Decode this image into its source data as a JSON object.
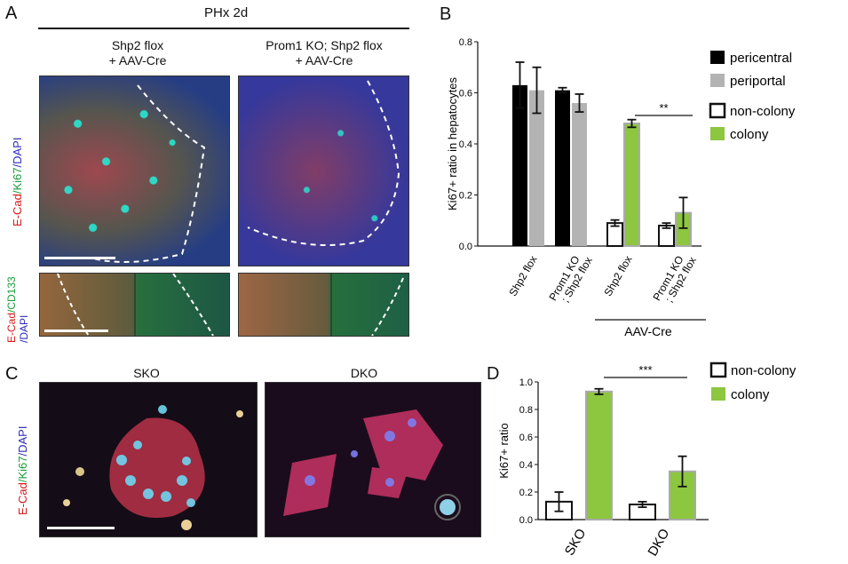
{
  "panel_labels": {
    "a": "A",
    "b": "B",
    "c": "C",
    "d": "D"
  },
  "panel_a": {
    "header": "PHx 2d",
    "col1_title_line1": "Shp2 flox",
    "col1_title_line2": "+ AAV-Cre",
    "col2_title_line1": "Prom1 KO; Shp2 flox",
    "col2_title_line2": "+ AAV-Cre",
    "row1_label": {
      "part1": "E-Cad",
      "part2": "/Ki67",
      "part3": "/DAPI"
    },
    "row2_label_line1": {
      "part1": "E-Cad",
      "part2": "/CD133"
    },
    "row2_label_line2": "/DAPI"
  },
  "panel_c": {
    "col1_title": "SKO",
    "col2_title": "DKO",
    "row_label": {
      "part1": "E-Cad",
      "part2": "/Ki67",
      "part3": "/DAPI"
    }
  },
  "chart_data": [
    {
      "panel": "B",
      "type": "bar",
      "ylabel": "Ki67+ ratio in  hepatocytes",
      "ylim": [
        0,
        0.8
      ],
      "yticks": [
        "0.0",
        "0.2",
        "0.4",
        "0.6",
        "0.8"
      ],
      "categories": [
        "Shp2 flox",
        "Prom1 KO\n; Shp2 flox",
        "Shp2 flox",
        "Prom1 KO\n; Shp2 flox"
      ],
      "group_label": "AAV-Cre",
      "series": [
        {
          "name": "pericentral",
          "color": "#000000",
          "values": [
            0.63,
            0.61,
            null,
            null
          ],
          "errors": [
            0.09,
            0.01,
            null,
            null
          ]
        },
        {
          "name": "periportal",
          "color": "#b3b3b3",
          "values": [
            0.61,
            0.56,
            null,
            null
          ],
          "errors": [
            0.09,
            0.035,
            null,
            null
          ]
        },
        {
          "name": "non-colony",
          "color": "#ffffff",
          "values": [
            null,
            null,
            0.09,
            0.08
          ],
          "errors": [
            null,
            null,
            0.012,
            0.01
          ]
        },
        {
          "name": "colony",
          "color": "#8dc63f",
          "values": [
            null,
            null,
            0.48,
            0.13
          ],
          "errors": [
            null,
            null,
            0.015,
            0.06
          ]
        }
      ],
      "significance": "**"
    },
    {
      "panel": "D",
      "type": "bar",
      "ylabel": "Ki67+ ratio",
      "ylim": [
        0,
        1.0
      ],
      "yticks": [
        "0.0",
        "0.2",
        "0.4",
        "0.6",
        "0.8",
        "1.0"
      ],
      "categories": [
        "SKO",
        "DKO"
      ],
      "series": [
        {
          "name": "non-colony",
          "color": "#ffffff",
          "values": [
            0.13,
            0.11
          ],
          "errors": [
            0.07,
            0.02
          ]
        },
        {
          "name": "colony",
          "color": "#8dc63f",
          "values": [
            0.93,
            0.35
          ],
          "errors": [
            0.02,
            0.11
          ]
        }
      ],
      "significance": "***"
    }
  ]
}
